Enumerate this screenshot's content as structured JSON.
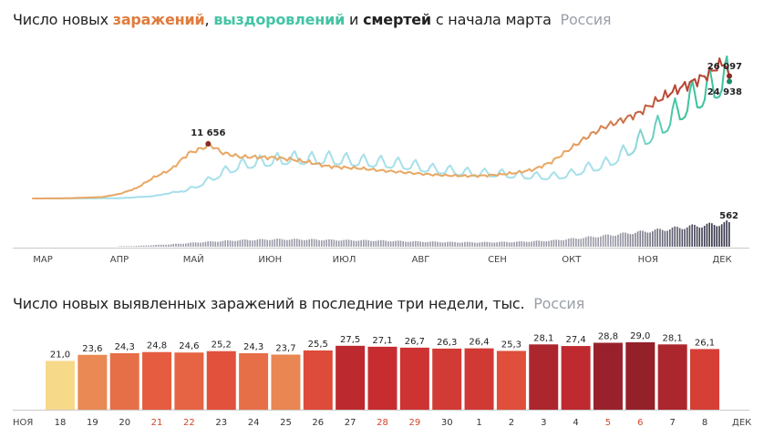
{
  "title1": {
    "part1": "Число новых ",
    "infections": "заражений",
    "sep": ", ",
    "recoveries": "выздоровлений",
    "and": " и ",
    "deaths": "смертей",
    "part2": " с начала марта",
    "region": "Россия"
  },
  "title2": {
    "text": "Число новых выявленных заражений в последние три недели, тыс.",
    "region": "Россия"
  },
  "colors": {
    "infections_early": "#e8a865",
    "infections_late": "#b84332",
    "recoveries_early": "#a6e0ea",
    "recoveries_late": "#3ec29e",
    "deaths_bars_early": "#9a9aa8",
    "deaths_bars_late": "#333347",
    "weekend_label": "#d2452a"
  },
  "chart_data": [
    {
      "type": "line",
      "x_axis_labels": [
        "МАР",
        "АПР",
        "МАЙ",
        "ИЮН",
        "ИЮЛ",
        "АВГ",
        "СЕН",
        "ОКТ",
        "НОЯ",
        "ДЕК"
      ],
      "series": [
        {
          "name": "заражений",
          "weekly_points": [
            [
              "2020-03-01",
              0
            ],
            [
              "2020-03-15",
              40
            ],
            [
              "2020-03-29",
              300
            ],
            [
              "2020-04-05",
              950
            ],
            [
              "2020-04-12",
              2200
            ],
            [
              "2020-04-19",
              4500
            ],
            [
              "2020-04-26",
              6200
            ],
            [
              "2020-05-03",
              9600
            ],
            [
              "2020-05-10",
              11000
            ],
            [
              "2020-05-11",
              11656
            ],
            [
              "2020-05-17",
              9700
            ],
            [
              "2020-05-24",
              8900
            ],
            [
              "2020-05-31",
              8800
            ],
            [
              "2020-06-07",
              8700
            ],
            [
              "2020-06-14",
              8300
            ],
            [
              "2020-06-21",
              7700
            ],
            [
              "2020-06-28",
              6900
            ],
            [
              "2020-07-05",
              6600
            ],
            [
              "2020-07-12",
              6400
            ],
            [
              "2020-07-19",
              6000
            ],
            [
              "2020-07-26",
              5700
            ],
            [
              "2020-08-02",
              5400
            ],
            [
              "2020-08-09",
              5100
            ],
            [
              "2020-08-16",
              4900
            ],
            [
              "2020-08-23",
              4800
            ],
            [
              "2020-08-30",
              4850
            ],
            [
              "2020-09-06",
              5100
            ],
            [
              "2020-09-13",
              5500
            ],
            [
              "2020-09-20",
              6200
            ],
            [
              "2020-09-27",
              7800
            ],
            [
              "2020-10-04",
              10400
            ],
            [
              "2020-10-11",
              13000
            ],
            [
              "2020-10-18",
              15200
            ],
            [
              "2020-10-25",
              16600
            ],
            [
              "2020-11-01",
              18100
            ],
            [
              "2020-11-08",
              20600
            ],
            [
              "2020-11-15",
              22800
            ],
            [
              "2020-11-22",
              24500
            ],
            [
              "2020-11-29",
              26300
            ],
            [
              "2020-12-03",
              28100
            ],
            [
              "2020-12-06",
              29000
            ],
            [
              "2020-12-07",
              28100
            ],
            [
              "2020-12-08",
              26097
            ]
          ],
          "last_value": 26097,
          "peak_label": "11 656",
          "last_label": "26 097"
        },
        {
          "name": "выздоровлений",
          "weekly_points": [
            [
              "2020-03-01",
              0
            ],
            [
              "2020-04-05",
              50
            ],
            [
              "2020-04-19",
              500
            ],
            [
              "2020-04-26",
              1200
            ],
            [
              "2020-05-03",
              1800
            ],
            [
              "2020-05-10",
              3500
            ],
            [
              "2020-05-17",
              5500
            ],
            [
              "2020-05-24",
              7000
            ],
            [
              "2020-05-31",
              7600
            ],
            [
              "2020-06-07",
              8000
            ],
            [
              "2020-06-14",
              8400
            ],
            [
              "2020-06-21",
              8200
            ],
            [
              "2020-06-28",
              8400
            ],
            [
              "2020-07-05",
              8100
            ],
            [
              "2020-07-12",
              7800
            ],
            [
              "2020-07-19",
              7600
            ],
            [
              "2020-07-26",
              7300
            ],
            [
              "2020-08-02",
              6900
            ],
            [
              "2020-08-09",
              6200
            ],
            [
              "2020-08-16",
              5900
            ],
            [
              "2020-08-23",
              5500
            ],
            [
              "2020-08-30",
              5300
            ],
            [
              "2020-09-06",
              5200
            ],
            [
              "2020-09-13",
              4900
            ],
            [
              "2020-09-20",
              4700
            ],
            [
              "2020-09-27",
              4600
            ],
            [
              "2020-10-04",
              5000
            ],
            [
              "2020-10-11",
              6300
            ],
            [
              "2020-10-18",
              7000
            ],
            [
              "2020-10-25",
              9000
            ],
            [
              "2020-11-01",
              11800
            ],
            [
              "2020-11-08",
              14200
            ],
            [
              "2020-11-15",
              17200
            ],
            [
              "2020-11-22",
              20500
            ],
            [
              "2020-11-29",
              22800
            ],
            [
              "2020-12-06",
              25200
            ],
            [
              "2020-12-08",
              24938
            ]
          ],
          "last_value": 24938,
          "last_label": "24 938"
        },
        {
          "name": "смертей",
          "type": "bar",
          "weekly_points": [
            [
              "2020-03-01",
              0
            ],
            [
              "2020-03-29",
              3
            ],
            [
              "2020-04-12",
              18
            ],
            [
              "2020-04-26",
              55
            ],
            [
              "2020-05-10",
              110
            ],
            [
              "2020-05-24",
              150
            ],
            [
              "2020-06-07",
              170
            ],
            [
              "2020-06-21",
              165
            ],
            [
              "2020-07-05",
              150
            ],
            [
              "2020-07-19",
              140
            ],
            [
              "2020-08-02",
              120
            ],
            [
              "2020-08-16",
              105
            ],
            [
              "2020-08-30",
              100
            ],
            [
              "2020-09-13",
              110
            ],
            [
              "2020-09-27",
              140
            ],
            [
              "2020-10-11",
              210
            ],
            [
              "2020-10-25",
              290
            ],
            [
              "2020-11-08",
              370
            ],
            [
              "2020-11-22",
              460
            ],
            [
              "2020-12-06",
              530
            ],
            [
              "2020-12-08",
              562
            ]
          ],
          "last_value": 562,
          "last_label": "562"
        }
      ]
    },
    {
      "type": "bar",
      "title": "Число новых выявленных заражений в последние три недели, тыс.",
      "start_label": "НОЯ",
      "end_label": "ДЕК",
      "categories": [
        "18",
        "19",
        "20",
        "21",
        "22",
        "23",
        "24",
        "25",
        "26",
        "27",
        "28",
        "29",
        "30",
        "1",
        "2",
        "3",
        "4",
        "5",
        "6",
        "7",
        "8"
      ],
      "values": [
        21.0,
        23.6,
        24.3,
        24.8,
        24.6,
        25.2,
        24.3,
        23.7,
        25.5,
        27.5,
        27.1,
        26.7,
        26.3,
        26.4,
        25.3,
        28.1,
        27.4,
        28.8,
        29.0,
        28.1,
        26.1
      ],
      "value_labels": [
        "21,0",
        "23,6",
        "24,3",
        "24,8",
        "24,6",
        "25,2",
        "24,3",
        "23,7",
        "25,5",
        "27,5",
        "27,1",
        "26,7",
        "26,3",
        "26,4",
        "25,3",
        "28,1",
        "27,4",
        "28,8",
        "29,0",
        "28,1",
        "26,1"
      ],
      "weekend": [
        false,
        false,
        false,
        true,
        true,
        false,
        false,
        false,
        false,
        false,
        true,
        true,
        false,
        false,
        false,
        false,
        false,
        true,
        true,
        false,
        false
      ],
      "ylim": [
        0,
        29
      ]
    }
  ]
}
